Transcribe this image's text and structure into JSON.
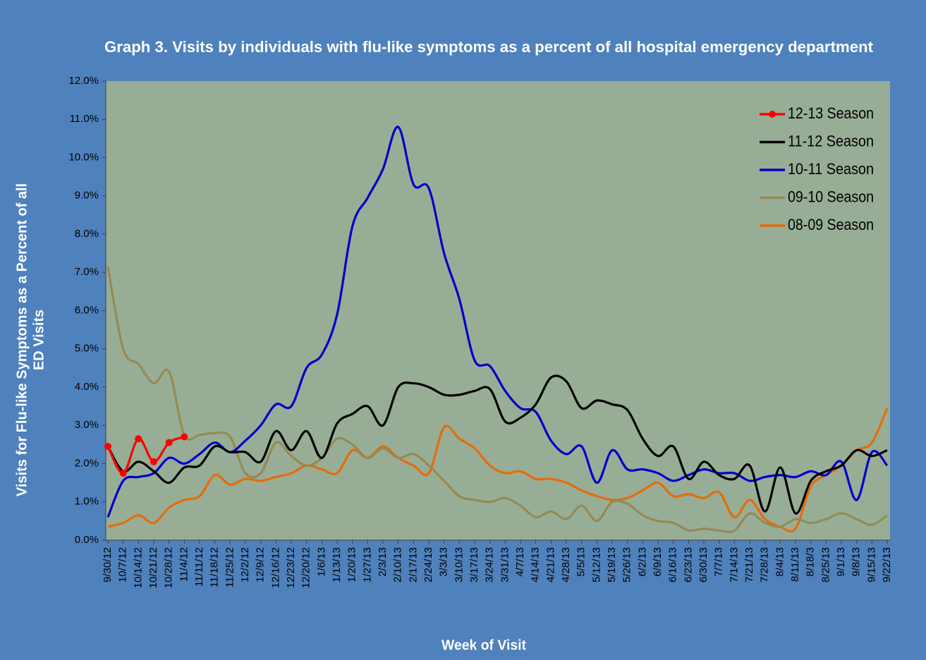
{
  "chart_data": {
    "type": "line",
    "title": "Graph 3. Visits by individuals  with flu-like symptoms  as a percent of all hospital  emergency department",
    "x_label": "Week of Visit",
    "y_label": [
      "Visits for Flu-like Symptoms as a Percent of all",
      "ED Visits"
    ],
    "categories": [
      "9/30/12",
      "10/7/12",
      "10/14/12",
      "10/21/12",
      "10/28/12",
      "11/4/12",
      "11/11/12",
      "11/18/12",
      "11/25/12",
      "12/2/12",
      "12/9/12",
      "12/16/12",
      "12/23/12",
      "12/20/12",
      "1/6/13",
      "1/13/13",
      "1/20/13",
      "1/27/13",
      "2/3/13",
      "2/10/13",
      "2/17/13",
      "2/24/13",
      "3/3/13",
      "3/10/13",
      "3/17/13",
      "3/24/13",
      "3/31/13",
      "4/7/13",
      "4/14/13",
      "4/21/13",
      "4/28/13",
      "5/5/13",
      "5/12/13",
      "5/19/13",
      "5/26/13",
      "6/2/13",
      "6/9/13",
      "6/16/13",
      "6/23/13",
      "6/30/13",
      "7/7/13",
      "7/14/13",
      "7/21/13",
      "7/28/13",
      "8/4/13",
      "8/11/13",
      "8/18/3",
      "8/25/13",
      "9/1/13",
      "9/8/13",
      "9/15/13",
      "9/22/13"
    ],
    "ylim": [
      0,
      12
    ],
    "yticks": [
      {
        "value": 0,
        "label": "0.0%"
      },
      {
        "value": 1,
        "label": "1.0%"
      },
      {
        "value": 2,
        "label": "2.0%"
      },
      {
        "value": 3,
        "label": "3.0%"
      },
      {
        "value": 4,
        "label": "4.0%"
      },
      {
        "value": 5,
        "label": "5.0%"
      },
      {
        "value": 6,
        "label": "6.0%"
      },
      {
        "value": 7,
        "label": "7.0%"
      },
      {
        "value": 8,
        "label": "8.0%"
      },
      {
        "value": 9,
        "label": "9.0%"
      },
      {
        "value": 10,
        "label": "10.0%"
      },
      {
        "value": 11,
        "label": "11.0%"
      },
      {
        "value": 12,
        "label": "12.0%"
      }
    ],
    "grid": false,
    "legend": "upper right",
    "series": [
      {
        "name": "12-13 Season",
        "color": "#ff0000",
        "markers": true,
        "values": [
          2.45,
          1.75,
          2.65,
          2.05,
          2.55,
          2.7,
          null,
          null,
          null,
          null,
          null,
          null,
          null,
          null,
          null,
          null,
          null,
          null,
          null,
          null,
          null,
          null,
          null,
          null,
          null,
          null,
          null,
          null,
          null,
          null,
          null,
          null,
          null,
          null,
          null,
          null,
          null,
          null,
          null,
          null,
          null,
          null,
          null,
          null,
          null,
          null,
          null,
          null,
          null,
          null,
          null,
          null
        ]
      },
      {
        "name": "11-12 Season",
        "color": "#000000",
        "markers": false,
        "values": [
          2.45,
          1.8,
          2.05,
          1.8,
          1.5,
          1.9,
          1.95,
          2.45,
          2.3,
          2.3,
          2.05,
          2.85,
          2.35,
          2.85,
          2.15,
          3.05,
          3.3,
          3.5,
          3.0,
          4.0,
          4.1,
          4.0,
          3.8,
          3.8,
          3.9,
          3.95,
          3.1,
          3.2,
          3.55,
          4.25,
          4.15,
          3.45,
          3.65,
          3.55,
          3.4,
          2.65,
          2.2,
          2.45,
          1.6,
          2.05,
          1.7,
          1.6,
          1.95,
          0.75,
          1.9,
          0.7,
          1.55,
          1.8,
          1.95,
          2.35,
          2.2,
          2.35
        ]
      },
      {
        "name": "10-11 Season",
        "color": "#0000cc",
        "markers": false,
        "values": [
          0.6,
          1.55,
          1.65,
          1.75,
          2.15,
          2.0,
          2.25,
          2.55,
          2.3,
          2.6,
          3.0,
          3.55,
          3.5,
          4.5,
          4.85,
          5.9,
          8.2,
          8.95,
          9.7,
          10.8,
          9.3,
          9.2,
          7.5,
          6.3,
          4.7,
          4.55,
          3.9,
          3.45,
          3.35,
          2.6,
          2.25,
          2.45,
          1.5,
          2.35,
          1.85,
          1.85,
          1.75,
          1.55,
          1.7,
          1.85,
          1.75,
          1.75,
          1.55,
          1.65,
          1.7,
          1.65,
          1.8,
          1.7,
          2.05,
          1.05,
          2.3,
          1.95
        ]
      },
      {
        "name": "09-10 Season",
        "color": "#948a54",
        "markers": false,
        "values": [
          7.15,
          5.0,
          4.6,
          4.1,
          4.4,
          2.75,
          2.75,
          2.8,
          2.7,
          1.75,
          1.75,
          2.55,
          2.2,
          1.95,
          2.15,
          2.65,
          2.5,
          2.15,
          2.4,
          2.15,
          2.25,
          1.95,
          1.55,
          1.15,
          1.05,
          1.0,
          1.1,
          0.9,
          0.6,
          0.75,
          0.55,
          0.9,
          0.5,
          1.0,
          0.95,
          0.65,
          0.5,
          0.45,
          0.25,
          0.3,
          0.25,
          0.25,
          0.7,
          0.45,
          0.35,
          0.55,
          0.45,
          0.55,
          0.7,
          0.55,
          0.4,
          0.65
        ]
      },
      {
        "name": "08-09 Season",
        "color": "#e46c0a",
        "markers": false,
        "values": [
          0.35,
          0.45,
          0.65,
          0.45,
          0.85,
          1.05,
          1.15,
          1.7,
          1.45,
          1.6,
          1.55,
          1.65,
          1.75,
          1.95,
          1.85,
          1.75,
          2.35,
          2.15,
          2.45,
          2.15,
          1.95,
          1.75,
          2.95,
          2.65,
          2.4,
          1.95,
          1.75,
          1.8,
          1.6,
          1.6,
          1.5,
          1.3,
          1.15,
          1.05,
          1.1,
          1.3,
          1.5,
          1.15,
          1.2,
          1.1,
          1.25,
          0.6,
          1.05,
          0.55,
          0.35,
          0.3,
          1.4,
          1.7,
          1.95,
          2.35,
          2.55,
          3.45
        ]
      }
    ]
  }
}
